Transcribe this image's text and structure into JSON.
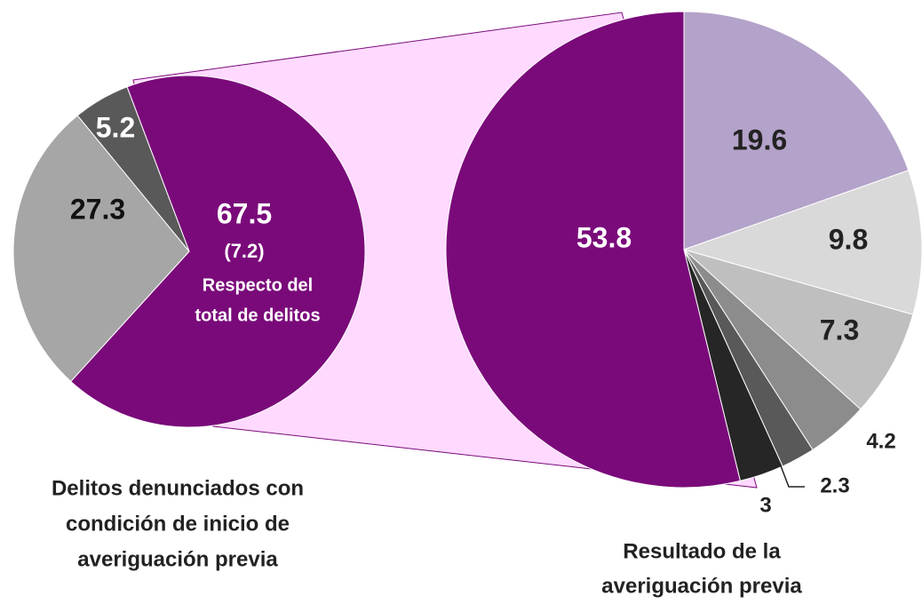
{
  "chart_data": [
    {
      "type": "pie",
      "values": [
        67.5,
        27.3,
        5.2
      ],
      "colors": [
        "#7a0a7a",
        "#a6a6a6",
        "#595959"
      ],
      "slice_notes": [
        "(7.2)",
        "Respecto del",
        "total de delitos"
      ],
      "caption_lines": [
        "Delitos denunciados con",
        "condición de inicio de",
        "averiguación previa"
      ]
    },
    {
      "type": "pie",
      "values": [
        19.6,
        9.8,
        7.3,
        4.2,
        2.3,
        3.0,
        53.8
      ],
      "colors": [
        "#b3a2c9",
        "#d9d9d9",
        "#bfbfbf",
        "#8c8c8c",
        "#595959",
        "#262626",
        "#7a0a7a"
      ],
      "caption_lines": [
        "Resultado de la",
        "averiguación previa"
      ]
    }
  ]
}
